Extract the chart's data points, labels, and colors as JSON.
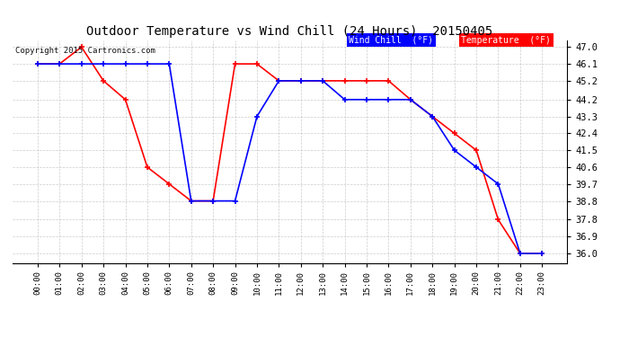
{
  "title": "Outdoor Temperature vs Wind Chill (24 Hours)  20150405",
  "copyright": "Copyright 2015 Cartronics.com",
  "x_labels": [
    "00:00",
    "01:00",
    "02:00",
    "03:00",
    "04:00",
    "05:00",
    "06:00",
    "07:00",
    "08:00",
    "09:00",
    "10:00",
    "11:00",
    "12:00",
    "13:00",
    "14:00",
    "15:00",
    "16:00",
    "17:00",
    "18:00",
    "19:00",
    "20:00",
    "21:00",
    "22:00",
    "23:00"
  ],
  "y_ticks": [
    36.0,
    36.9,
    37.8,
    38.8,
    39.7,
    40.6,
    41.5,
    42.4,
    43.3,
    44.2,
    45.2,
    46.1,
    47.0
  ],
  "ylim": [
    35.5,
    47.35
  ],
  "temp_color": "#ff0000",
  "wind_color": "#0000ff",
  "bg_color": "#ffffff",
  "grid_color": "#aaaaaa",
  "temperature": [
    46.1,
    46.1,
    47.0,
    45.2,
    44.2,
    40.6,
    39.7,
    38.8,
    38.8,
    46.1,
    46.1,
    45.2,
    45.2,
    45.2,
    45.2,
    45.2,
    45.2,
    44.2,
    43.3,
    42.4,
    41.5,
    37.8,
    36.0,
    36.0
  ],
  "wind_chill": [
    46.1,
    46.1,
    46.1,
    46.1,
    46.1,
    46.1,
    46.1,
    38.8,
    38.8,
    38.8,
    43.3,
    45.2,
    45.2,
    45.2,
    44.2,
    44.2,
    44.2,
    44.2,
    43.3,
    41.5,
    40.6,
    39.7,
    36.0,
    36.0
  ],
  "legend_wind_label": "Wind Chill  (°F)",
  "legend_temp_label": "Temperature  (°F)"
}
